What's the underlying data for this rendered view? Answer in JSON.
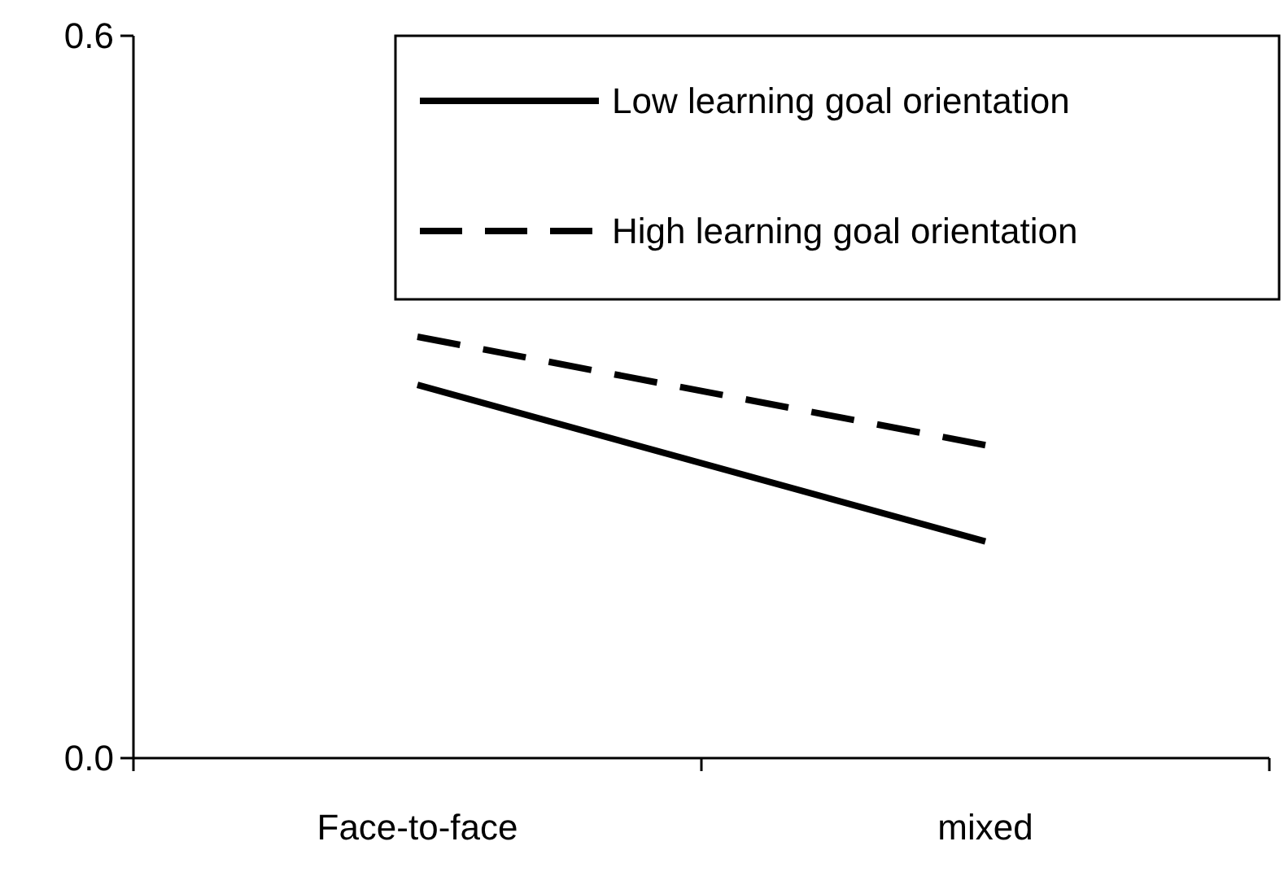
{
  "chart_data": {
    "type": "line",
    "categories": [
      "Face-to-face",
      "mixed"
    ],
    "series": [
      {
        "name": "Low learning goal orientation",
        "color": "#000000",
        "line_style": "solid",
        "values": [
          0.31,
          0.18
        ]
      },
      {
        "name": "High learning goal orientation",
        "color": "#000000",
        "line_style": "dashed",
        "values": [
          0.35,
          0.26
        ]
      }
    ],
    "ylim": [
      0,
      0.6
    ],
    "yticks": [
      {
        "value": 0,
        "label": "0.0"
      },
      {
        "value": 0.6,
        "label": "0.6"
      }
    ],
    "grid": false,
    "legend": "top",
    "marker": "none"
  }
}
